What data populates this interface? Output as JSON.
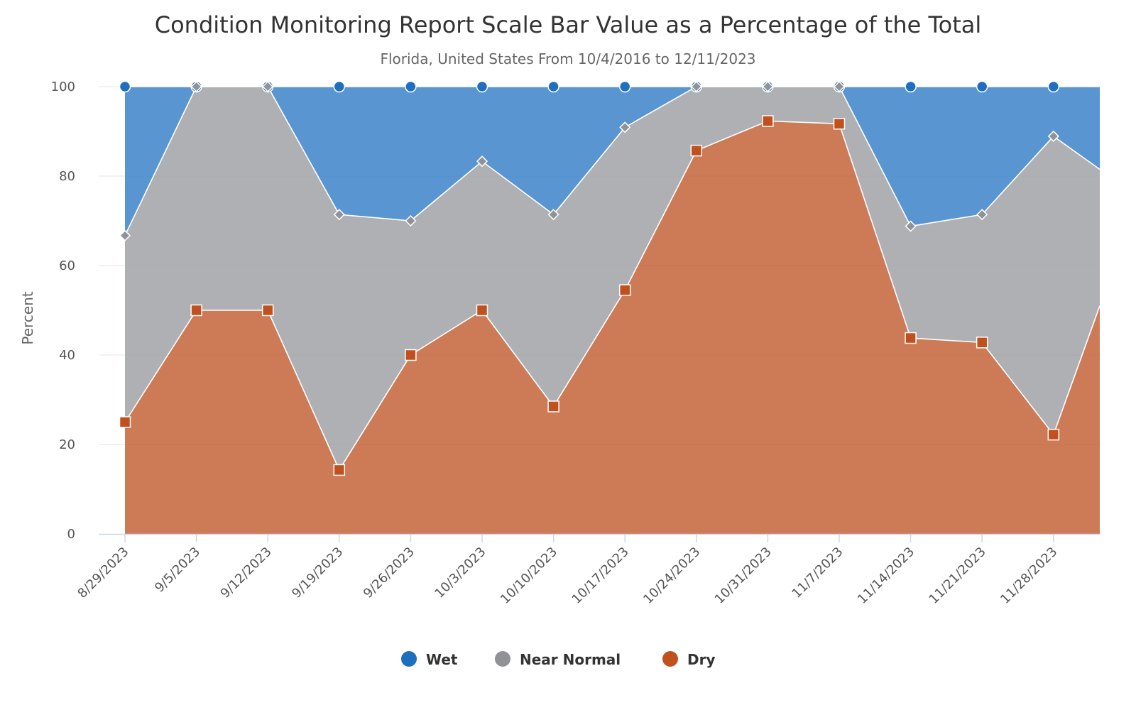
{
  "chart_data": {
    "type": "area",
    "stacked": true,
    "title": "Condition Monitoring Report Scale Bar Value as a Percentage of the Total",
    "subtitle": "Florida, United States From 10/4/2016 to 12/11/2023",
    "ylabel": "Percent",
    "xlabel": "",
    "ylim": [
      0,
      100
    ],
    "yticks": [
      0,
      20,
      40,
      60,
      80,
      100
    ],
    "grid": true,
    "legend_position": "bottom-center",
    "categories": [
      "8/29/2023",
      "9/5/2023",
      "9/12/2023",
      "9/19/2023",
      "9/26/2023",
      "10/3/2023",
      "10/10/2023",
      "10/17/2023",
      "10/24/2023",
      "10/31/2023",
      "11/7/2023",
      "11/14/2023",
      "11/21/2023",
      "11/28/2023"
    ],
    "series": [
      {
        "name": "Wet",
        "color": "#1f6fbf",
        "marker": "circle",
        "values": [
          33.3,
          0,
          0,
          28.6,
          30,
          16.7,
          28.6,
          9.1,
          0,
          0,
          0,
          31.2,
          28.6,
          11.1
        ]
      },
      {
        "name": "Near Normal",
        "color": "#909296",
        "marker": "diamond",
        "values": [
          41.7,
          50,
          50,
          57.1,
          30,
          33.3,
          42.9,
          36.4,
          14.3,
          7.7,
          8.3,
          25,
          28.6,
          66.7
        ]
      },
      {
        "name": "Dry",
        "color": "#c0501e",
        "marker": "square",
        "values": [
          25,
          50,
          50,
          14.3,
          40,
          50,
          28.5,
          54.5,
          85.7,
          92.3,
          91.7,
          43.8,
          42.8,
          22.2
        ]
      }
    ],
    "trailing_partial": {
      "dry_top": 51,
      "near_normal_top": 81.5,
      "wet_top": 100
    }
  }
}
